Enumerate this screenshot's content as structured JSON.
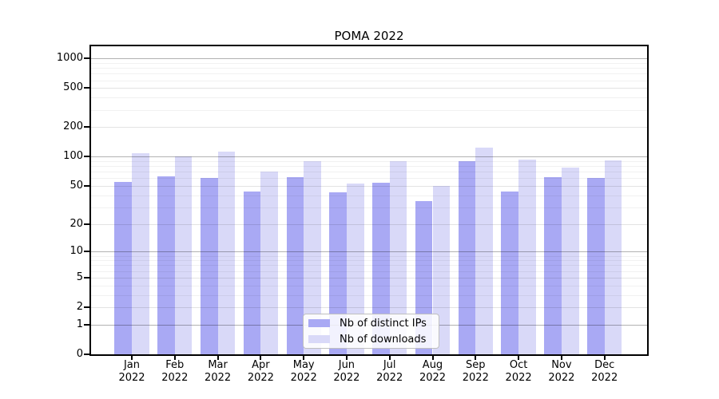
{
  "chart_data": {
    "type": "bar",
    "title": "POMA 2022",
    "categories": [
      "Jan 2022",
      "Feb 2022",
      "Mar 2022",
      "Apr 2022",
      "May 2022",
      "Jun 2022",
      "Jul 2022",
      "Aug 2022",
      "Sep 2022",
      "Oct 2022",
      "Nov 2022",
      "Dec 2022"
    ],
    "series": [
      {
        "name": "Nb of distinct IPs",
        "color": "#a9a9f4",
        "values": [
          55,
          63,
          61,
          44,
          62,
          43,
          54,
          35,
          90,
          44,
          62,
          60
        ]
      },
      {
        "name": "Nb of downloads",
        "color": "#d9d9f8",
        "values": [
          109,
          101,
          113,
          70,
          90,
          53,
          90,
          50,
          123,
          93,
          78,
          92
        ]
      }
    ],
    "xlabel": "",
    "ylabel": "",
    "yticks": [
      0,
      1,
      2,
      5,
      10,
      20,
      50,
      100,
      200,
      500,
      1000
    ],
    "ylim": [
      0,
      1280
    ],
    "yscale": "log1p",
    "grid": "on",
    "legend_position": "bottom-center",
    "background_color": "#ffffff",
    "axis_color": "#000000"
  }
}
